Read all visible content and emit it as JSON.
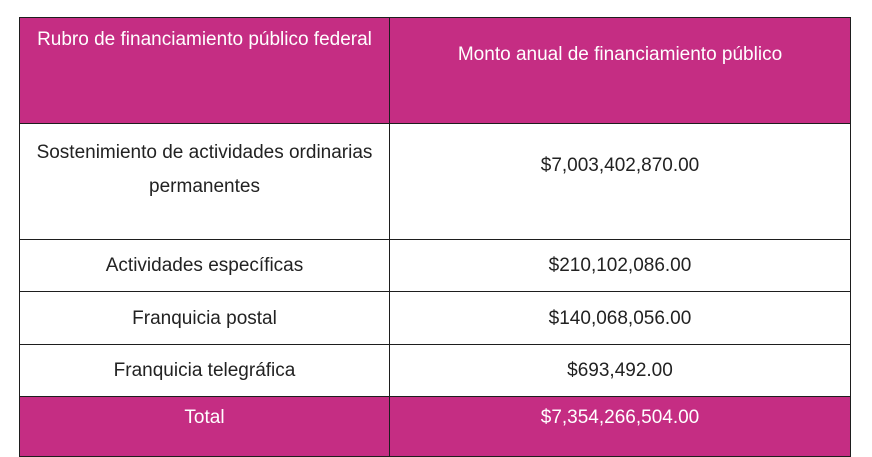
{
  "table": {
    "header": {
      "col1": "Rubro de financiamiento público federal",
      "col2": "Monto anual de financiamiento público"
    },
    "rows": [
      {
        "label": "Sostenimiento de actividades ordinarias permanentes",
        "amount": "$7,003,402,870.00"
      },
      {
        "label": "Actividades específicas",
        "amount": "$210,102,086.00"
      },
      {
        "label": "Franquicia postal",
        "amount": "$140,068,056.00"
      },
      {
        "label": "Franquicia telegráfica",
        "amount": "$693,492.00"
      }
    ],
    "total": {
      "label": "Total",
      "amount": "$7,354,266,504.00"
    }
  },
  "colors": {
    "header_bg": "#c52d83",
    "header_text": "#ffffff",
    "border": "#1e1e1e"
  }
}
